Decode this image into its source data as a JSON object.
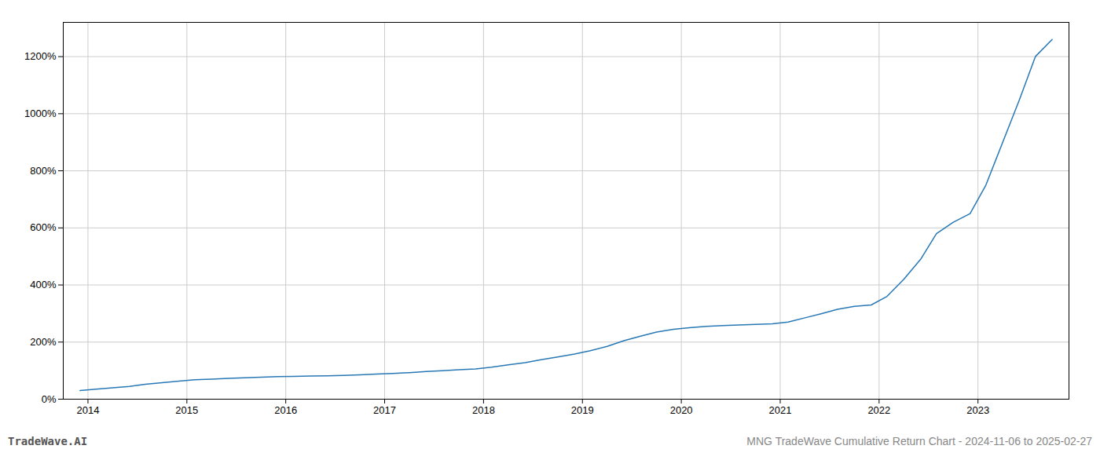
{
  "chart_data": {
    "type": "line",
    "title": "MNG TradeWave Cumulative Return Chart - 2024-11-06 to 2025-02-27",
    "annotations": [
      "TradeWave.AI"
    ],
    "x": [
      2013.92,
      2014.08,
      2014.25,
      2014.42,
      2014.58,
      2014.75,
      2014.92,
      2015.08,
      2015.25,
      2015.42,
      2015.58,
      2015.75,
      2015.92,
      2016.08,
      2016.25,
      2016.42,
      2016.58,
      2016.75,
      2016.92,
      2017.08,
      2017.25,
      2017.42,
      2017.58,
      2017.75,
      2017.92,
      2018.08,
      2018.25,
      2018.42,
      2018.58,
      2018.75,
      2018.92,
      2019.08,
      2019.25,
      2019.42,
      2019.58,
      2019.75,
      2019.92,
      2020.08,
      2020.25,
      2020.42,
      2020.58,
      2020.75,
      2020.92,
      2021.08,
      2021.25,
      2021.42,
      2021.58,
      2021.75,
      2021.92,
      2022.08,
      2022.25,
      2022.42,
      2022.58,
      2022.75,
      2022.92,
      2023.08,
      2023.25,
      2023.42,
      2023.58,
      2023.75
    ],
    "values": [
      30,
      35,
      40,
      45,
      52,
      58,
      63,
      68,
      70,
      73,
      75,
      77,
      79,
      80,
      81,
      82,
      83,
      85,
      88,
      90,
      93,
      97,
      100,
      103,
      106,
      112,
      120,
      128,
      138,
      148,
      158,
      170,
      185,
      205,
      220,
      235,
      245,
      250,
      255,
      258,
      260,
      262,
      264,
      270,
      285,
      300,
      315,
      325,
      330,
      360,
      420,
      490,
      580,
      620,
      650,
      750,
      900,
      1050,
      1200,
      1260
    ],
    "color": "#2878b5",
    "xlim": [
      2013.75,
      2023.92
    ],
    "xticks": [
      2014,
      2015,
      2016,
      2017,
      2018,
      2019,
      2020,
      2021,
      2022,
      2023
    ],
    "ylim": [
      0,
      1320
    ],
    "yticks": [
      {
        "value": 0,
        "label": "0%"
      },
      {
        "value": 200,
        "label": "200%"
      },
      {
        "value": 400,
        "label": "400%"
      },
      {
        "value": 600,
        "label": "600%"
      },
      {
        "value": 800,
        "label": "800%"
      },
      {
        "value": 1000,
        "label": "1000%"
      },
      {
        "value": 1200,
        "label": "1200%"
      }
    ],
    "grid": true
  }
}
